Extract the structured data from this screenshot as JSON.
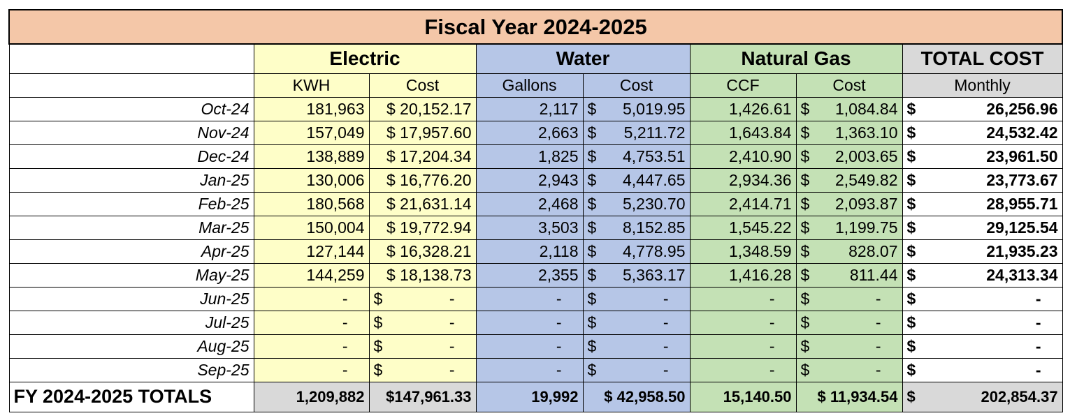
{
  "title": "Fiscal Year 2024-2025",
  "groups": {
    "electric": "Electric",
    "water": "Water",
    "gas": "Natural Gas",
    "total": "TOTAL COST"
  },
  "subheaders": {
    "kwh": "KWH",
    "elec_cost": "Cost",
    "gallons": "Gallons",
    "water_cost": "Cost",
    "ccf": "CCF",
    "gas_cost": "Cost",
    "monthly": "Monthly"
  },
  "currency_symbol": "$",
  "rows": [
    {
      "month": "Oct-24",
      "kwh": "181,963",
      "elec_cost": "$ 20,152.17",
      "gallons": "2,117",
      "water_cost": "5,019.95",
      "ccf": "1,426.61",
      "gas_cost": "1,084.84",
      "total": "26,256.96"
    },
    {
      "month": "Nov-24",
      "kwh": "157,049",
      "elec_cost": "$ 17,957.60",
      "gallons": "2,663",
      "water_cost": "5,211.72",
      "ccf": "1,643.84",
      "gas_cost": "1,363.10",
      "total": "24,532.42"
    },
    {
      "month": "Dec-24",
      "kwh": "138,889",
      "elec_cost": "$ 17,204.34",
      "gallons": "1,825",
      "water_cost": "4,753.51",
      "ccf": "2,410.90",
      "gas_cost": "2,003.65",
      "total": "23,961.50"
    },
    {
      "month": "Jan-25",
      "kwh": "130,006",
      "elec_cost": "$ 16,776.20",
      "gallons": "2,943",
      "water_cost": "4,447.65",
      "ccf": "2,934.36",
      "gas_cost": "2,549.82",
      "total": "23,773.67"
    },
    {
      "month": "Feb-25",
      "kwh": "180,568",
      "elec_cost": "$ 21,631.14",
      "gallons": "2,468",
      "water_cost": "5,230.70",
      "ccf": "2,414.71",
      "gas_cost": "2,093.87",
      "total": "28,955.71"
    },
    {
      "month": "Mar-25",
      "kwh": "150,004",
      "elec_cost": "$ 19,772.94",
      "gallons": "3,503",
      "water_cost": "8,152.85",
      "ccf": "1,545.22",
      "gas_cost": "1,199.75",
      "total": "29,125.54"
    },
    {
      "month": "Apr-25",
      "kwh": "127,144",
      "elec_cost": "$ 16,328.21",
      "gallons": "2,118",
      "water_cost": "4,778.95",
      "ccf": "1,348.59",
      "gas_cost": "828.07",
      "total": "21,935.23"
    },
    {
      "month": "May-25",
      "kwh": "144,259",
      "elec_cost": "$ 18,138.73",
      "gallons": "2,355",
      "water_cost": "5,363.17",
      "ccf": "1,416.28",
      "gas_cost": "811.44",
      "total": "24,313.34"
    },
    {
      "month": "Jun-25",
      "kwh": "-",
      "elec_cost": "-",
      "gallons": "-",
      "water_cost": "-",
      "ccf": "-",
      "gas_cost": "-",
      "total": "-"
    },
    {
      "month": "Jul-25",
      "kwh": "-",
      "elec_cost": "-",
      "gallons": "-",
      "water_cost": "-",
      "ccf": "-",
      "gas_cost": "-",
      "total": "-"
    },
    {
      "month": "Aug-25",
      "kwh": "-",
      "elec_cost": "-",
      "gallons": "-",
      "water_cost": "-",
      "ccf": "-",
      "gas_cost": "-",
      "total": "-"
    },
    {
      "month": "Sep-25",
      "kwh": "-",
      "elec_cost": "-",
      "gallons": "-",
      "water_cost": "-",
      "ccf": "-",
      "gas_cost": "-",
      "total": "-"
    }
  ],
  "totals": {
    "label": "FY 2024-2025 TOTALS",
    "kwh": "1,209,882",
    "elec_cost": "$147,961.33",
    "gallons": "19,992",
    "water_cost": "$ 42,958.50",
    "ccf": "15,140.50",
    "gas_cost": "$ 11,934.54",
    "total": "202,854.37"
  },
  "colors": {
    "title": "#f4c7a8",
    "electric": "#fefec8",
    "water": "#b6c6e7",
    "gas": "#c4e1b5",
    "total": "#d9d9d9"
  }
}
